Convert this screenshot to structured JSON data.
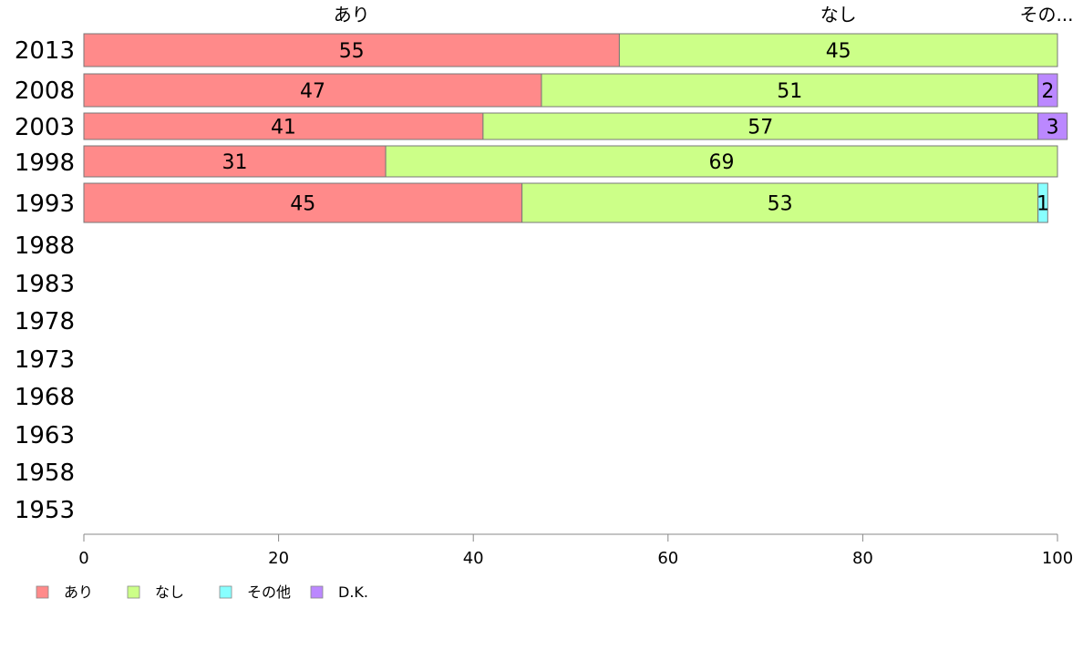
{
  "chart_data": {
    "type": "bar",
    "orientation": "horizontal",
    "stacked": true,
    "categories": [
      "2013",
      "2008",
      "2003",
      "1998",
      "1993",
      "1988",
      "1983",
      "1978",
      "1973",
      "1968",
      "1963",
      "1958",
      "1953"
    ],
    "series": [
      {
        "name": "あり",
        "color": "#ff8a8a",
        "values": [
          55,
          47,
          41,
          31,
          45,
          null,
          null,
          null,
          null,
          null,
          null,
          null,
          null
        ]
      },
      {
        "name": "なし",
        "color": "#ccff88",
        "values": [
          45,
          51,
          57,
          69,
          53,
          null,
          null,
          null,
          null,
          null,
          null,
          null,
          null
        ]
      },
      {
        "name": "その他",
        "color": "#88ffff",
        "values": [
          0,
          0,
          0,
          0,
          1,
          null,
          null,
          null,
          null,
          null,
          null,
          null,
          null
        ]
      },
      {
        "name": "D.K.",
        "color": "#bb88ff",
        "values": [
          0,
          2,
          3,
          0,
          0,
          null,
          null,
          null,
          null,
          null,
          null,
          null,
          null
        ]
      }
    ],
    "xlim": [
      0,
      100
    ],
    "xticks": [
      "0",
      "20",
      "40",
      "60",
      "80",
      "100"
    ],
    "top_labels": [
      "あり",
      "なし",
      "その..."
    ],
    "legend_position": "bottom-left",
    "grid": false
  }
}
